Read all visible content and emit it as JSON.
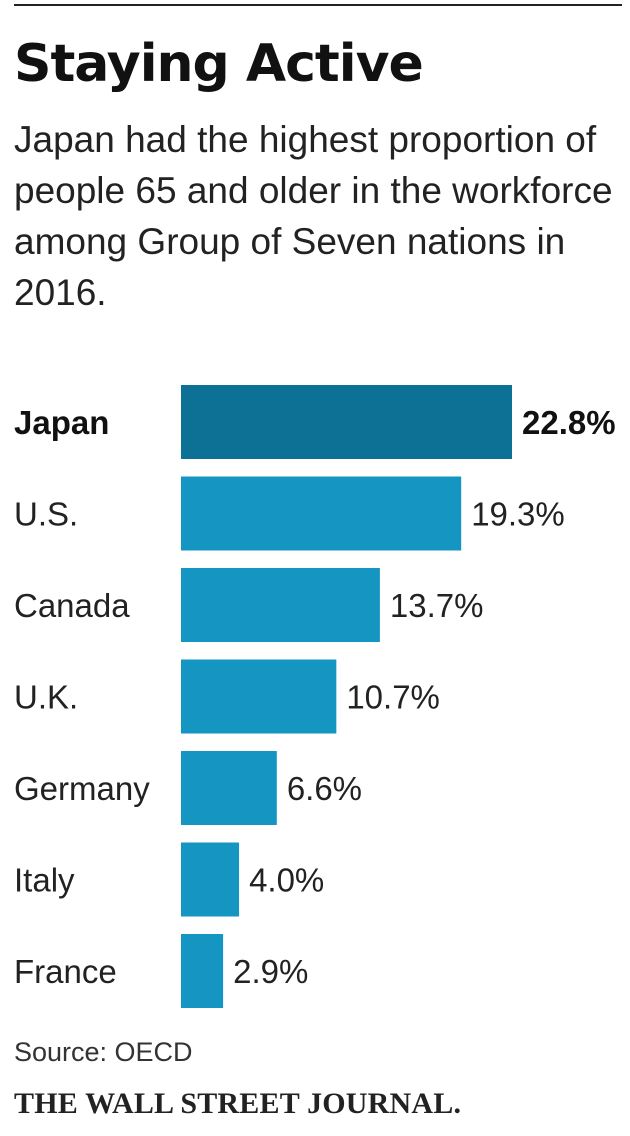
{
  "chart_data": {
    "type": "bar",
    "orientation": "horizontal",
    "title": "Staying Active",
    "subtitle": "Japan had the highest proportion of people 65 and older in the workforce among Group of Seven nations in 2016.",
    "categories": [
      "Japan",
      "U.S.",
      "Canada",
      "U.K.",
      "Germany",
      "Italy",
      "France"
    ],
    "values": [
      22.8,
      19.3,
      13.7,
      10.7,
      6.6,
      4.0,
      2.9
    ],
    "value_labels": [
      "22.8%",
      "19.3%",
      "13.7%",
      "10.7%",
      "6.6%",
      "4.0%",
      "2.9%"
    ],
    "highlight": "Japan",
    "colors": {
      "bar": "#1596c2",
      "highlight_bar": "#0d7196"
    },
    "xlim": [
      0,
      25
    ],
    "grid": false,
    "legend": "none"
  },
  "source": "Source: OECD",
  "publisher": "THE WALL STREET JOURNAL."
}
